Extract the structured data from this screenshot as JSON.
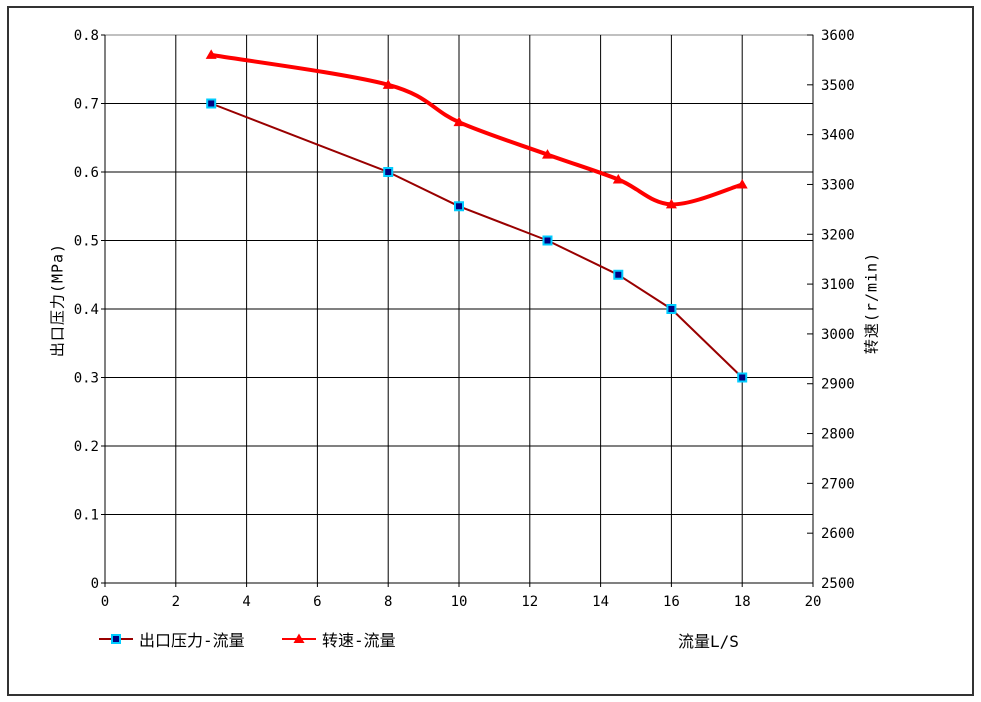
{
  "chart_data": {
    "type": "line",
    "title": "",
    "x_axis": {
      "label": "流量L/S",
      "min": 0,
      "max": 20,
      "ticks": [
        0,
        2,
        4,
        6,
        8,
        10,
        12,
        14,
        16,
        18,
        20
      ],
      "tick_labels": [
        "0",
        "2",
        "4",
        "6",
        "8",
        "10",
        "12",
        "14",
        "16",
        "18",
        "20"
      ]
    },
    "y_left": {
      "label": "出口压力(MPa)",
      "min": 0,
      "max": 0.8,
      "ticks": [
        0,
        0.1,
        0.2,
        0.3,
        0.4,
        0.5,
        0.6,
        0.7,
        0.8
      ],
      "tick_labels": [
        "0",
        "0.1",
        "0.2",
        "0.3",
        "0.4",
        "0.5",
        "0.6",
        "0.7",
        "0.8"
      ]
    },
    "y_right": {
      "label": "转速(r/min)",
      "min": 2500,
      "max": 3600,
      "ticks": [
        2500,
        2600,
        2700,
        2800,
        2900,
        3000,
        3100,
        3200,
        3300,
        3400,
        3500,
        3600
      ],
      "tick_labels": [
        "2500",
        "2600",
        "2700",
        "2800",
        "2900",
        "3000",
        "3100",
        "3200",
        "3300",
        "3400",
        "3500",
        "3600"
      ]
    },
    "x": [
      3,
      8,
      10,
      12.5,
      14.5,
      16,
      18
    ],
    "series": [
      {
        "name": "出口压力-流量",
        "axis": "left",
        "marker": "square",
        "smooth": false,
        "line_color": "#990000",
        "line_width": 2,
        "marker_fill": "#000080",
        "marker_stroke": "#00CCFF",
        "values": [
          0.7,
          0.6,
          0.55,
          0.5,
          0.45,
          0.4,
          0.3
        ]
      },
      {
        "name": "转速-流量",
        "axis": "right",
        "marker": "triangle",
        "smooth": true,
        "line_color": "#FF0000",
        "line_width": 4,
        "marker_fill": "#FF0000",
        "marker_stroke": "#FF0000",
        "values": [
          3560,
          3500,
          3425,
          3360,
          3310,
          3260,
          3300
        ]
      }
    ],
    "grid": true,
    "legend_position": "bottom",
    "grid_color": "#000000",
    "axis_color": "#000000",
    "plot_border_color": "#808080",
    "frame_border_color": "#333333",
    "background": "#FFFFFF"
  }
}
